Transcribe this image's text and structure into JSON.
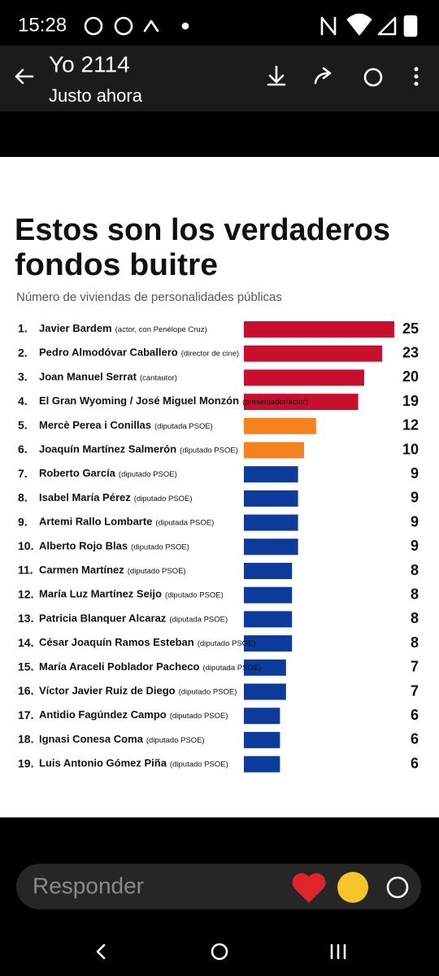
{
  "status": {
    "time": "15:28"
  },
  "header": {
    "title": "Yo 2114",
    "subtitle": "Justo ahora"
  },
  "chart_data": {
    "type": "bar",
    "orientation": "horizontal",
    "title_lines": [
      "Estos son los verdaderos",
      "fondos buitre"
    ],
    "subtitle": "Número de viviendas de personalidades públicas",
    "ranks": [
      "1.",
      "2.",
      "3.",
      "4.",
      "5.",
      "6.",
      "7.",
      "8.",
      "9.",
      "10.",
      "11.",
      "12.",
      "13.",
      "14.",
      "15.",
      "16.",
      "17.",
      "18.",
      "19."
    ],
    "categories": [
      "Javier Bardem",
      "Pedro Almodóvar Caballero",
      "Joan Manuel Serrat",
      "El Gran Wyoming / José Miguel Monzón",
      "Mercè Perea i Conillas",
      "Joaquín Martínez Salmerón",
      "Roberto García",
      "Isabel María Pérez",
      "Artemi Rallo Lombarte",
      "Alberto Rojo Blas",
      "Carmen Martínez",
      "María Luz Martínez Seijo",
      "Patricia Blanquer Alcaraz",
      "César Joaquín Ramos Esteban",
      "María Araceli Poblador Pacheco",
      "Víctor Javier Ruiz de Diego",
      "Antidio Fagúndez Campo",
      "Ignasi Conesa Coma",
      "Luis Antonio Gómez Piña"
    ],
    "category_notes": [
      "(actor, con Penélope Cruz)",
      "(director de cine)",
      "(cantautor)",
      "(presentador/actor)",
      "(diputada PSOE)",
      "(diputado PSOE)",
      "(diputado PSOE)",
      "(diputado PSOE)",
      "(diputada PSOE)",
      "(diputado PSOE)",
      "(diputado PSOE)",
      "(diputado PSOE)",
      "(diputada PSOE)",
      "(diputado PSOE)",
      "(diputada PSOE)",
      "(diputado PSOE)",
      "(diputado PSOE)",
      "(diputado PSOE)",
      "(diputado PSOE)"
    ],
    "values": [
      25,
      23,
      20,
      19,
      12,
      10,
      9,
      9,
      9,
      9,
      8,
      8,
      8,
      8,
      7,
      7,
      6,
      6,
      6
    ],
    "colors": [
      "#c8102e",
      "#c8102e",
      "#c8102e",
      "#c8102e",
      "#f5821f",
      "#f5821f",
      "#0d3b9c",
      "#0d3b9c",
      "#0d3b9c",
      "#0d3b9c",
      "#0d3b9c",
      "#0d3b9c",
      "#0d3b9c",
      "#0d3b9c",
      "#0d3b9c",
      "#0d3b9c",
      "#0d3b9c",
      "#0d3b9c",
      "#0d3b9c"
    ]
  },
  "reply": {
    "placeholder": "Responder"
  }
}
